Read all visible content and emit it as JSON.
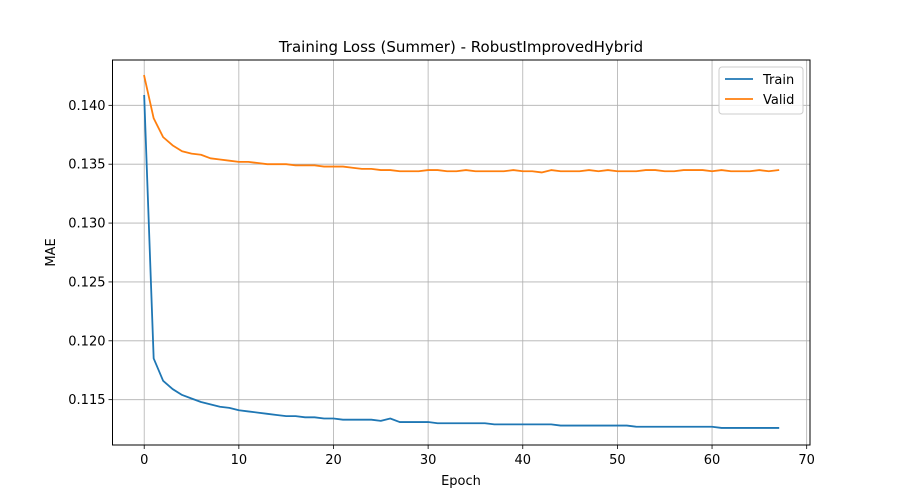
{
  "chart_data": {
    "type": "line",
    "title": "Training Loss (Summer) - RobustImprovedHybrid",
    "xlabel": "Epoch",
    "ylabel": "MAE",
    "xlim": [
      -3.35,
      70.35
    ],
    "ylim": [
      0.11115,
      0.14385
    ],
    "xticks": [
      0,
      10,
      20,
      30,
      40,
      50,
      60,
      70
    ],
    "xtick_labels": [
      "0",
      "10",
      "20",
      "30",
      "40",
      "50",
      "60",
      "70"
    ],
    "yticks": [
      0.115,
      0.12,
      0.125,
      0.13,
      0.135,
      0.14
    ],
    "ytick_labels": [
      "0.115",
      "0.120",
      "0.125",
      "0.130",
      "0.135",
      "0.140"
    ],
    "grid": true,
    "legend_position": "top-right",
    "x": [
      0,
      1,
      2,
      3,
      4,
      5,
      6,
      7,
      8,
      9,
      10,
      11,
      12,
      13,
      14,
      15,
      16,
      17,
      18,
      19,
      20,
      21,
      22,
      23,
      24,
      25,
      26,
      27,
      28,
      29,
      30,
      31,
      32,
      33,
      34,
      35,
      36,
      37,
      38,
      39,
      40,
      41,
      42,
      43,
      44,
      45,
      46,
      47,
      48,
      49,
      50,
      51,
      52,
      53,
      54,
      55,
      56,
      57,
      58,
      59,
      60,
      61,
      62,
      63,
      64,
      65,
      66,
      67
    ],
    "series": [
      {
        "name": "Train",
        "color": "#1f77b4",
        "values": [
          0.1408,
          0.1185,
          0.1166,
          0.1159,
          0.1154,
          0.1151,
          0.1148,
          0.1146,
          0.1144,
          0.1143,
          0.1141,
          0.114,
          0.1139,
          0.1138,
          0.1137,
          0.1136,
          0.1136,
          0.1135,
          0.1135,
          0.1134,
          0.1134,
          0.1133,
          0.1133,
          0.1133,
          0.1133,
          0.1132,
          0.1134,
          0.1131,
          0.1131,
          0.1131,
          0.1131,
          0.113,
          0.113,
          0.113,
          0.113,
          0.113,
          0.113,
          0.1129,
          0.1129,
          0.1129,
          0.1129,
          0.1129,
          0.1129,
          0.1129,
          0.1128,
          0.1128,
          0.1128,
          0.1128,
          0.1128,
          0.1128,
          0.1128,
          0.1128,
          0.1127,
          0.1127,
          0.1127,
          0.1127,
          0.1127,
          0.1127,
          0.1127,
          0.1127,
          0.1127,
          0.1126,
          0.1126,
          0.1126,
          0.1126,
          0.1126,
          0.1126,
          0.1126
        ]
      },
      {
        "name": "Valid",
        "color": "#ff7f0e",
        "values": [
          0.1425,
          0.1389,
          0.1373,
          0.1366,
          0.1361,
          0.1359,
          0.1358,
          0.1355,
          0.1354,
          0.1353,
          0.1352,
          0.1352,
          0.1351,
          0.135,
          0.135,
          0.135,
          0.1349,
          0.1349,
          0.1349,
          0.1348,
          0.1348,
          0.1348,
          0.1347,
          0.1346,
          0.1346,
          0.1345,
          0.1345,
          0.1344,
          0.1344,
          0.1344,
          0.1345,
          0.1345,
          0.1344,
          0.1344,
          0.1345,
          0.1344,
          0.1344,
          0.1344,
          0.1344,
          0.1345,
          0.1344,
          0.1344,
          0.1343,
          0.1345,
          0.1344,
          0.1344,
          0.1344,
          0.1345,
          0.1344,
          0.1345,
          0.1344,
          0.1344,
          0.1344,
          0.1345,
          0.1345,
          0.1344,
          0.1344,
          0.1345,
          0.1345,
          0.1345,
          0.1344,
          0.1345,
          0.1344,
          0.1344,
          0.1344,
          0.1345,
          0.1344,
          0.1345
        ]
      }
    ]
  }
}
